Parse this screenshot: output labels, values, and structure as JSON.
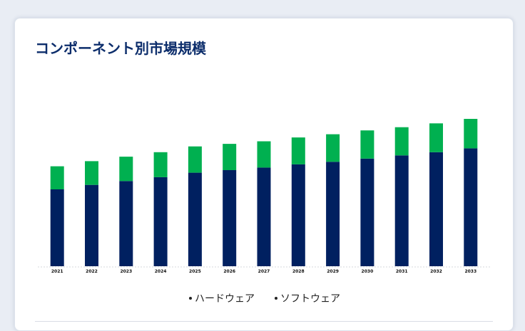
{
  "chart_data": {
    "type": "bar",
    "stacked": true,
    "title": "コンポーネント別市場規模",
    "categories": [
      "2021",
      "2022",
      "2023",
      "2024",
      "2025",
      "2026",
      "2027",
      "2028",
      "2029",
      "2030",
      "2031",
      "2032",
      "2033"
    ],
    "series": [
      {
        "name": "ハードウェア",
        "color": "#002060",
        "values": [
          120,
          127,
          133,
          139,
          146,
          150,
          154,
          159,
          163,
          168,
          173,
          178,
          184
        ]
      },
      {
        "name": "ソフトウェア",
        "color": "#00b050",
        "values": [
          36,
          37,
          38,
          39,
          41,
          41,
          41,
          42,
          43,
          44,
          44,
          45,
          46
        ]
      }
    ],
    "xlabel": "",
    "ylabel": "",
    "y_axis_visible": false,
    "grid": false,
    "legend_position": "bottom"
  }
}
